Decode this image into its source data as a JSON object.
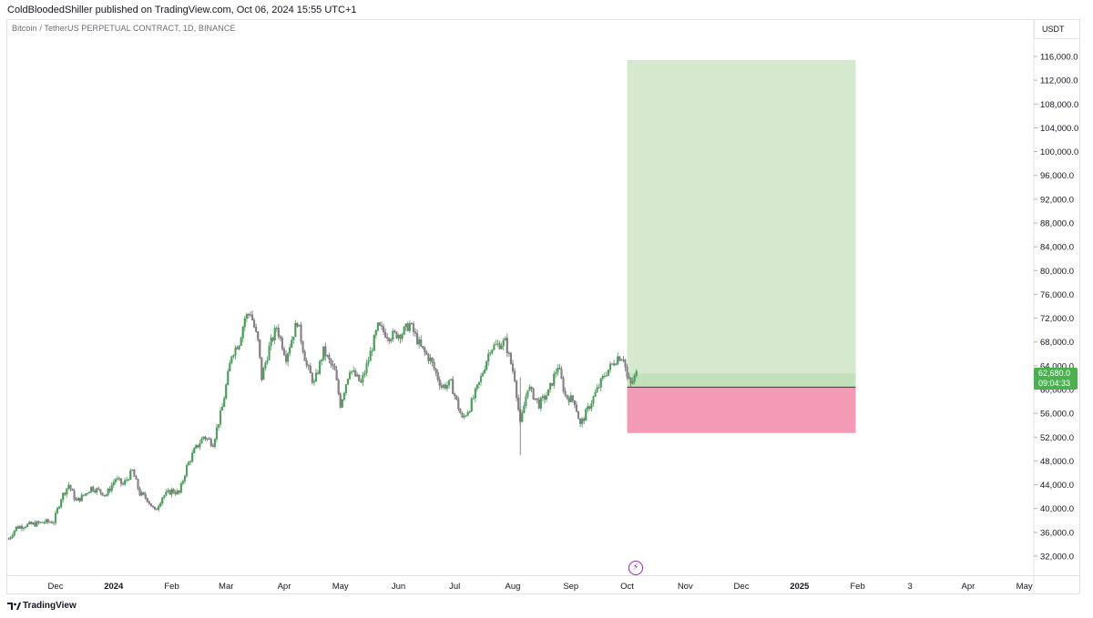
{
  "publish_line": "ColdBloodedShiller published on TradingView.com, Oct 06, 2024 15:55 UTC+1",
  "symbol_line": "Bitcoin / TetherUS PERPETUAL CONTRACT, 1D, BINANCE",
  "currency": "USDT",
  "footer_brand": "TradingView",
  "icons": {
    "footer_logo": "tradingview-logo-icon",
    "events": "lightning-icon"
  },
  "chart_data": {
    "type": "candlestick",
    "title": "Bitcoin / TetherUS PERPETUAL CONTRACT, 1D, BINANCE",
    "ylim": [
      29000,
      120000
    ],
    "yticks": [
      32000,
      36000,
      40000,
      44000,
      48000,
      52000,
      56000,
      60000,
      64000,
      68000,
      72000,
      76000,
      80000,
      84000,
      88000,
      92000,
      96000,
      100000,
      104000,
      108000,
      112000,
      116000
    ],
    "ytick_labels": [
      "32,000.0",
      "36,000.0",
      "40,000.0",
      "44,000.0",
      "48,000.0",
      "52,000.0",
      "56,000.0",
      "60,000.0",
      "64,000.0",
      "68,000.0",
      "72,000.0",
      "76,000.0",
      "80,000.0",
      "84,000.0",
      "88,000.0",
      "92,000.0",
      "96,000.0",
      "100,000.0",
      "104,000.0",
      "108,000.0",
      "112,000.0",
      "116,000.0"
    ],
    "xticks": [
      {
        "label": "Dec",
        "date": "2023-12-01",
        "bold": false
      },
      {
        "label": "2024",
        "date": "2024-01-01",
        "bold": true
      },
      {
        "label": "Feb",
        "date": "2024-02-01",
        "bold": false
      },
      {
        "label": "Mar",
        "date": "2024-03-01",
        "bold": false
      },
      {
        "label": "Apr",
        "date": "2024-04-01",
        "bold": false
      },
      {
        "label": "May",
        "date": "2024-05-01",
        "bold": false
      },
      {
        "label": "Jun",
        "date": "2024-06-01",
        "bold": false
      },
      {
        "label": "Jul",
        "date": "2024-07-01",
        "bold": false
      },
      {
        "label": "Aug",
        "date": "2024-08-01",
        "bold": false
      },
      {
        "label": "Sep",
        "date": "2024-09-01",
        "bold": false
      },
      {
        "label": "Oct",
        "date": "2024-10-01",
        "bold": false
      },
      {
        "label": "Nov",
        "date": "2024-11-01",
        "bold": false
      },
      {
        "label": "Dec",
        "date": "2024-12-01",
        "bold": false
      },
      {
        "label": "2025",
        "date": "2025-01-01",
        "bold": true
      },
      {
        "label": "Feb",
        "date": "2025-02-01",
        "bold": false
      },
      {
        "label": "3",
        "date": "2025-03-01",
        "bold": false
      },
      {
        "label": "Apr",
        "date": "2025-04-01",
        "bold": false
      },
      {
        "label": "May",
        "date": "2025-05-01",
        "bold": false
      }
    ],
    "price_series": [
      [
        "2023-11-06",
        34900
      ],
      [
        "2023-11-10",
        36800
      ],
      [
        "2023-11-15",
        37200
      ],
      [
        "2023-11-20",
        37400
      ],
      [
        "2023-11-25",
        37700
      ],
      [
        "2023-11-30",
        37800
      ],
      [
        "2023-12-04",
        41800
      ],
      [
        "2023-12-08",
        44000
      ],
      [
        "2023-12-12",
        41200
      ],
      [
        "2023-12-16",
        42200
      ],
      [
        "2023-12-20",
        43500
      ],
      [
        "2023-12-24",
        43000
      ],
      [
        "2023-12-28",
        42300
      ],
      [
        "2024-01-02",
        45000
      ],
      [
        "2024-01-06",
        44000
      ],
      [
        "2024-01-11",
        46300
      ],
      [
        "2024-01-15",
        42500
      ],
      [
        "2024-01-19",
        41600
      ],
      [
        "2024-01-23",
        39500
      ],
      [
        "2024-01-27",
        42000
      ],
      [
        "2024-02-01",
        43000
      ],
      [
        "2024-02-05",
        42600
      ],
      [
        "2024-02-09",
        47000
      ],
      [
        "2024-02-13",
        49700
      ],
      [
        "2024-02-18",
        52100
      ],
      [
        "2024-02-23",
        51000
      ],
      [
        "2024-02-28",
        57000
      ],
      [
        "2024-03-04",
        66000
      ],
      [
        "2024-03-08",
        68000
      ],
      [
        "2024-03-11",
        72000
      ],
      [
        "2024-03-14",
        73000
      ],
      [
        "2024-03-18",
        68000
      ],
      [
        "2024-03-20",
        62000
      ],
      [
        "2024-03-24",
        67000
      ],
      [
        "2024-03-28",
        70500
      ],
      [
        "2024-04-02",
        65500
      ],
      [
        "2024-04-08",
        71500
      ],
      [
        "2024-04-13",
        64000
      ],
      [
        "2024-04-17",
        61000
      ],
      [
        "2024-04-22",
        66500
      ],
      [
        "2024-04-28",
        63000
      ],
      [
        "2024-05-01",
        57500
      ],
      [
        "2024-05-06",
        63500
      ],
      [
        "2024-05-12",
        61000
      ],
      [
        "2024-05-16",
        65000
      ],
      [
        "2024-05-21",
        70500
      ],
      [
        "2024-05-27",
        69000
      ],
      [
        "2024-06-03",
        69500
      ],
      [
        "2024-06-07",
        71000
      ],
      [
        "2024-06-13",
        67000
      ],
      [
        "2024-06-18",
        65000
      ],
      [
        "2024-06-24",
        60500
      ],
      [
        "2024-06-29",
        61000
      ],
      [
        "2024-07-05",
        55000
      ],
      [
        "2024-07-09",
        57000
      ],
      [
        "2024-07-14",
        61000
      ],
      [
        "2024-07-20",
        67000
      ],
      [
        "2024-07-28",
        68000
      ],
      [
        "2024-08-02",
        62000
      ],
      [
        "2024-08-05",
        54000
      ],
      [
        "2024-08-09",
        60500
      ],
      [
        "2024-08-15",
        57500
      ],
      [
        "2024-08-20",
        59500
      ],
      [
        "2024-08-25",
        64000
      ],
      [
        "2024-08-29",
        59000
      ],
      [
        "2024-09-03",
        58000
      ],
      [
        "2024-09-06",
        54000
      ],
      [
        "2024-09-12",
        58000
      ],
      [
        "2024-09-19",
        62500
      ],
      [
        "2024-09-26",
        65500
      ],
      [
        "2024-09-29",
        65500
      ],
      [
        "2024-10-01",
        62000
      ],
      [
        "2024-10-03",
        60800
      ],
      [
        "2024-10-06",
        62680
      ]
    ],
    "position": {
      "entry": 60400,
      "target": 115400,
      "stop": 52700,
      "start_date": "2024-10-01",
      "end_date": "2025-01-31",
      "profit_color": "#d4e9ce",
      "profit_near_color": "#c2e0ba",
      "loss_color": "#f29ab6"
    },
    "last_price": "62,680.0",
    "countdown": "09:04:33",
    "last_price_color": "#4caf50",
    "up_color": "#4a9d5a",
    "down_color": "#6b6b6b"
  }
}
